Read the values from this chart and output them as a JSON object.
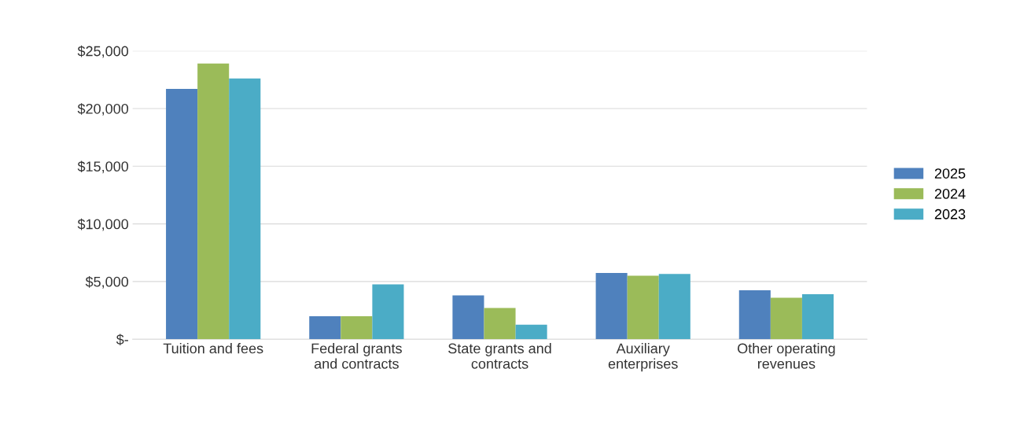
{
  "chart_data": {
    "type": "bar",
    "categories": [
      "Tuition and fees",
      "Federal grants\nand contracts",
      "State grants and\ncontracts",
      "Auxiliary\nenterprises",
      "Other operating\nrevenues"
    ],
    "series": [
      {
        "name": "2025",
        "color": "#4f81bd",
        "values": [
          21700,
          2000,
          3800,
          5750,
          4250
        ]
      },
      {
        "name": "2024",
        "color": "#9bbb59",
        "values": [
          23900,
          2000,
          2700,
          5500,
          3600
        ]
      },
      {
        "name": "2023",
        "color": "#4bacc6",
        "values": [
          22600,
          4750,
          1250,
          5650,
          3900
        ]
      }
    ],
    "ylim": [
      0,
      25000
    ],
    "yticks": [
      {
        "value": 0,
        "label": "$-"
      },
      {
        "value": 5000,
        "label": "$5,000"
      },
      {
        "value": 10000,
        "label": "$10,000"
      },
      {
        "value": 15000,
        "label": "$15,000"
      },
      {
        "value": 20000,
        "label": "$20,000"
      },
      {
        "value": 25000,
        "label": "$25,000"
      }
    ],
    "grid": "y",
    "legend": "right"
  }
}
